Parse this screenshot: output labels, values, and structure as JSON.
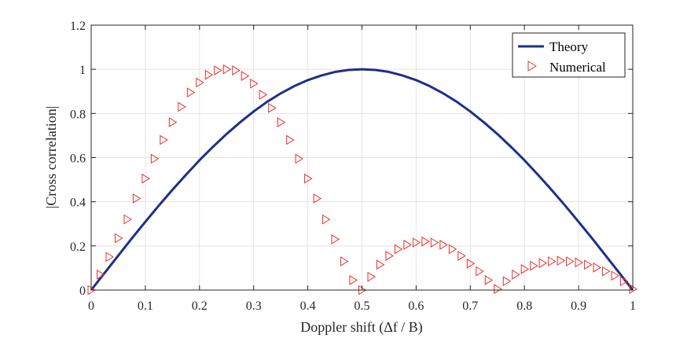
{
  "chart_data": {
    "type": "line",
    "xlabel": "Doppler shift (Δf / B)",
    "ylabel": "|Cross correlation|",
    "xlim": [
      0,
      1
    ],
    "ylim": [
      0,
      1.2
    ],
    "xticks": [
      0,
      0.1,
      0.2,
      0.3,
      0.4,
      0.5,
      0.6,
      0.7,
      0.8,
      0.9,
      1
    ],
    "xtick_labels": [
      "0",
      "0.1",
      "0.2",
      "0.3",
      "0.4",
      "0.5",
      "0.6",
      "0.7",
      "0.8",
      "0.9",
      "1"
    ],
    "yticks": [
      0,
      0.2,
      0.4,
      0.6,
      0.8,
      1,
      1.2
    ],
    "ytick_labels": [
      "0",
      "0.2",
      "0.4",
      "0.6",
      "0.8",
      "1",
      "1.2"
    ],
    "grid": true,
    "legend_position": "top-right",
    "series": [
      {
        "name": "Theory",
        "style": "line",
        "color": "#1f2f8a",
        "x": [
          0,
          0.025,
          0.05,
          0.075,
          0.1,
          0.125,
          0.15,
          0.175,
          0.2,
          0.225,
          0.25,
          0.275,
          0.3,
          0.325,
          0.35,
          0.375,
          0.4,
          0.425,
          0.45,
          0.475,
          0.5,
          0.525,
          0.55,
          0.575,
          0.6,
          0.625,
          0.65,
          0.675,
          0.7,
          0.725,
          0.75,
          0.775,
          0.8,
          0.825,
          0.85,
          0.875,
          0.9,
          0.925,
          0.95,
          0.975,
          1
        ],
        "y": [
          0,
          0.078,
          0.156,
          0.234,
          0.309,
          0.383,
          0.454,
          0.522,
          0.588,
          0.649,
          0.707,
          0.76,
          0.809,
          0.853,
          0.891,
          0.924,
          0.951,
          0.972,
          0.988,
          0.997,
          1.0,
          0.997,
          0.988,
          0.972,
          0.951,
          0.924,
          0.891,
          0.853,
          0.809,
          0.76,
          0.707,
          0.649,
          0.588,
          0.522,
          0.454,
          0.383,
          0.309,
          0.234,
          0.156,
          0.078,
          0
        ]
      },
      {
        "name": "Numerical",
        "style": "marker",
        "marker": "triangle-right",
        "color": "#e8302a",
        "x": [
          0,
          0.0167,
          0.0333,
          0.05,
          0.0667,
          0.0833,
          0.1,
          0.1167,
          0.1333,
          0.15,
          0.1667,
          0.1833,
          0.2,
          0.2167,
          0.2333,
          0.25,
          0.2667,
          0.2833,
          0.3,
          0.3167,
          0.3333,
          0.35,
          0.3667,
          0.3833,
          0.4,
          0.4167,
          0.4333,
          0.45,
          0.4667,
          0.4833,
          0.5,
          0.5167,
          0.5333,
          0.55,
          0.5667,
          0.5833,
          0.6,
          0.6167,
          0.6333,
          0.65,
          0.6667,
          0.6833,
          0.7,
          0.7167,
          0.7333,
          0.75,
          0.7667,
          0.7833,
          0.8,
          0.8167,
          0.8333,
          0.85,
          0.8667,
          0.8833,
          0.9,
          0.9167,
          0.9333,
          0.95,
          0.9667,
          0.9833,
          1
        ],
        "y": [
          0,
          0.07,
          0.15,
          0.235,
          0.32,
          0.415,
          0.505,
          0.595,
          0.68,
          0.76,
          0.83,
          0.895,
          0.94,
          0.975,
          0.995,
          1.0,
          0.995,
          0.97,
          0.935,
          0.885,
          0.825,
          0.76,
          0.68,
          0.595,
          0.505,
          0.415,
          0.32,
          0.23,
          0.13,
          0.045,
          0.0,
          0.06,
          0.115,
          0.155,
          0.185,
          0.205,
          0.215,
          0.22,
          0.215,
          0.205,
          0.185,
          0.155,
          0.12,
          0.085,
          0.045,
          0.005,
          0.04,
          0.07,
          0.095,
          0.11,
          0.122,
          0.13,
          0.133,
          0.13,
          0.125,
          0.115,
          0.102,
          0.085,
          0.065,
          0.04,
          0.005
        ]
      }
    ]
  }
}
